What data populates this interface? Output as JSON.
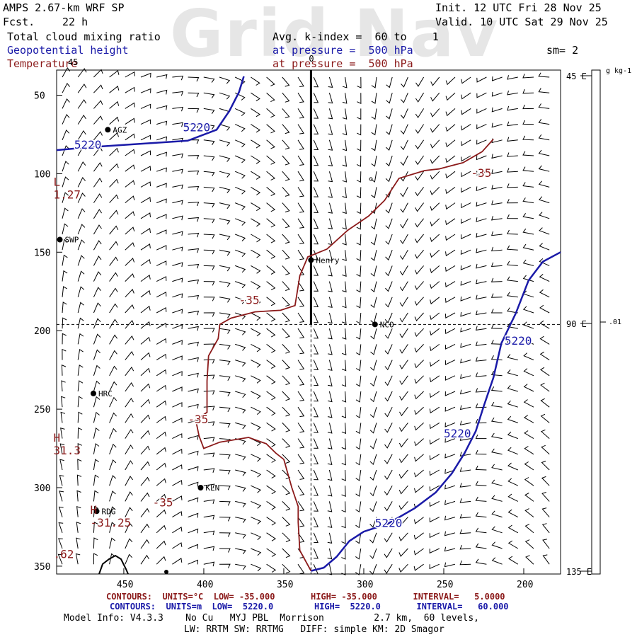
{
  "watermark": "Grid Nav",
  "header": {
    "title": "AMPS 2.67-km WRF SP",
    "fcst_label": "Fcst.",
    "fcst_value": "22 h",
    "init": "Init. 12 UTC Fri 28 Nov 25",
    "valid": "Valid. 10 UTC Sat 29 Nov 25",
    "field1": "Total cloud mixing ratio",
    "field2": "Geopotential height",
    "field3": "Temperature",
    "avg": "Avg. k-index =  60 to    1",
    "pressure1": "at pressure =  500 hPa",
    "pressure2": "at pressure =  500 hPa",
    "sm": "sm= 2"
  },
  "colors": {
    "height": "#1a1aa8",
    "temperature": "#8b1a1a",
    "barbs": "#000000"
  },
  "chart_data": {
    "type": "contour-map",
    "x_ticks": [
      "450",
      "400",
      "350",
      "300",
      "250",
      "200"
    ],
    "y_ticks": [
      "50",
      "100",
      "150",
      "200",
      "250",
      "300",
      "350"
    ],
    "colorbar": {
      "unit": "g kg-1",
      "labels": [
        "45 E",
        "90 E",
        "135 E"
      ],
      "value": ".01"
    },
    "stations": [
      {
        "name": "AGZ",
        "x": 460,
        "y": 72
      },
      {
        "name": "SWP",
        "x": 490,
        "y": 142
      },
      {
        "name": "Henry",
        "x": 333,
        "y": 155
      },
      {
        "name": "NCO",
        "x": 293,
        "y": 196
      },
      {
        "name": "HRC",
        "x": 469,
        "y": 240
      },
      {
        "name": "KLN",
        "x": 402,
        "y": 300
      },
      {
        "name": "RDG",
        "x": 467,
        "y": 315
      }
    ],
    "cross_section": {
      "x": 333,
      "y_top": 40,
      "y_bottom": 196,
      "label": "0",
      "label2": "45"
    },
    "guide_x": 333,
    "guide_y": 196,
    "height_contours": [
      {
        "value": "5220",
        "points": [
          [
            492,
            85
          ],
          [
            470,
            83
          ],
          [
            440,
            81
          ],
          [
            410,
            79
          ],
          [
            392,
            72
          ],
          [
            384,
            60
          ],
          [
            378,
            48
          ],
          [
            375,
            38
          ]
        ],
        "labels": [
          {
            "text": "5220",
            "x": 481,
            "y": 84
          },
          {
            "text": "5220",
            "x": 413,
            "y": 73
          }
        ]
      },
      {
        "value": "5220",
        "points": [
          [
            333,
            353
          ],
          [
            325,
            351
          ],
          [
            317,
            344
          ],
          [
            309,
            334
          ],
          [
            300,
            328
          ],
          [
            285,
            323
          ],
          [
            268,
            313
          ],
          [
            255,
            303
          ],
          [
            245,
            291
          ],
          [
            237,
            278
          ],
          [
            230,
            264
          ],
          [
            225,
            248
          ],
          [
            219,
            230
          ],
          [
            214,
            208
          ],
          [
            205,
            189
          ],
          [
            197,
            168
          ],
          [
            188,
            156
          ],
          [
            177,
            150
          ]
        ],
        "labels": [
          {
            "text": "5220",
            "x": 293,
            "y": 325
          },
          {
            "text": "5220",
            "x": 250,
            "y": 268
          },
          {
            "text": "5220",
            "x": 212,
            "y": 209
          }
        ]
      }
    ],
    "temp_contours": [
      {
        "value": "-35",
        "points": [
          [
            333,
            353
          ],
          [
            340,
            340
          ],
          [
            341,
            322
          ],
          [
            341,
            312
          ],
          [
            345,
            300
          ],
          [
            350,
            282
          ],
          [
            355,
            278
          ],
          [
            361,
            272
          ],
          [
            372,
            268
          ],
          [
            390,
            271
          ],
          [
            400,
            275
          ],
          [
            403,
            267
          ],
          [
            405,
            257
          ],
          [
            398,
            252
          ],
          [
            398,
            232
          ],
          [
            397,
            216
          ],
          [
            391,
            205
          ],
          [
            390,
            196
          ],
          [
            383,
            192
          ],
          [
            368,
            188
          ],
          [
            352,
            187
          ],
          [
            343,
            184
          ],
          [
            342,
            178
          ],
          [
            340,
            165
          ],
          [
            335,
            153
          ],
          [
            323,
            148
          ],
          [
            310,
            136
          ],
          [
            297,
            127
          ],
          [
            287,
            117
          ],
          [
            278,
            103
          ],
          [
            262,
            98
          ],
          [
            253,
            97
          ],
          [
            238,
            93
          ],
          [
            226,
            86
          ],
          [
            219,
            78
          ]
        ],
        "labels": [
          {
            "text": "-35",
            "x": 432,
            "y": 312
          },
          {
            "text": "-35",
            "x": 410,
            "y": 259
          },
          {
            "text": "-35",
            "x": 378,
            "y": 183
          },
          {
            "text": "-35",
            "x": 233,
            "y": 102
          }
        ]
      }
    ],
    "extrema": [
      {
        "mark": "L",
        "value": "1.27",
        "x": 494,
        "y": 115
      },
      {
        "mark": "H",
        "value": "31.3",
        "x": 494,
        "y": 278
      },
      {
        "mark": "H",
        "value": "-31.25",
        "x": 471,
        "y": 324
      },
      {
        "mark": "",
        "value": ".62",
        "x": 494,
        "y": 344
      }
    ],
    "footer": {
      "temp_contours": "CONTOURS:  UNITS=°C  LOW= -35.000       HIGH= -35.000       INTERVAL=   5.0000",
      "height_contours": "CONTOURS:  UNITS=m  LOW=  5220.0        HIGH=  5220.0       INTERVAL=   60.000",
      "model_info": "Model Info: V4.3.3    No Cu   MYJ PBL  Morrison         2.7 km,  60 levels,",
      "model_info2": "LW: RRTM SW: RRTMG   DIFF: simple KM: 2D Smagor"
    }
  }
}
